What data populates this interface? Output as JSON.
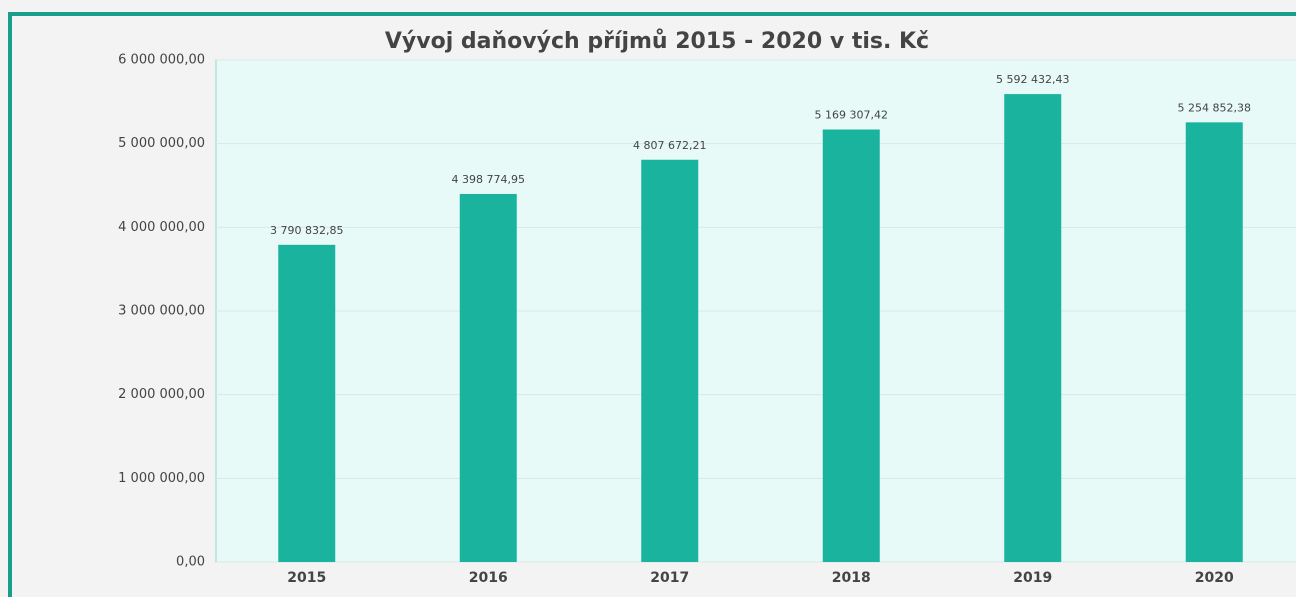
{
  "chart_data": {
    "type": "bar",
    "title": "Vývoj daňových příjmů 2015 - 2020 v tis. Kč",
    "categories": [
      "2015",
      "2016",
      "2017",
      "2018",
      "2019",
      "2020"
    ],
    "values": [
      3790832.85,
      4398774.95,
      4807672.21,
      5169307.42,
      5592432.43,
      5254852.38
    ],
    "value_labels": [
      "3 790 832,85",
      "4 398 774,95",
      "4 807 672,21",
      "5 169 307,42",
      "5 592 432,43",
      "5 254 852,38"
    ],
    "color": "#1ab39d",
    "ylim": [
      0,
      6000000
    ],
    "yticks": [
      {
        "value": 0,
        "label": "0,00"
      },
      {
        "value": 1000000,
        "label": "1 000 000,00"
      },
      {
        "value": 2000000,
        "label": "2 000 000,00"
      },
      {
        "value": 3000000,
        "label": "3 000 000,00"
      },
      {
        "value": 4000000,
        "label": "4 000 000,00"
      },
      {
        "value": 5000000,
        "label": "5 000 000,00"
      },
      {
        "value": 6000000,
        "label": "6 000 000,00"
      }
    ],
    "grid": true
  }
}
